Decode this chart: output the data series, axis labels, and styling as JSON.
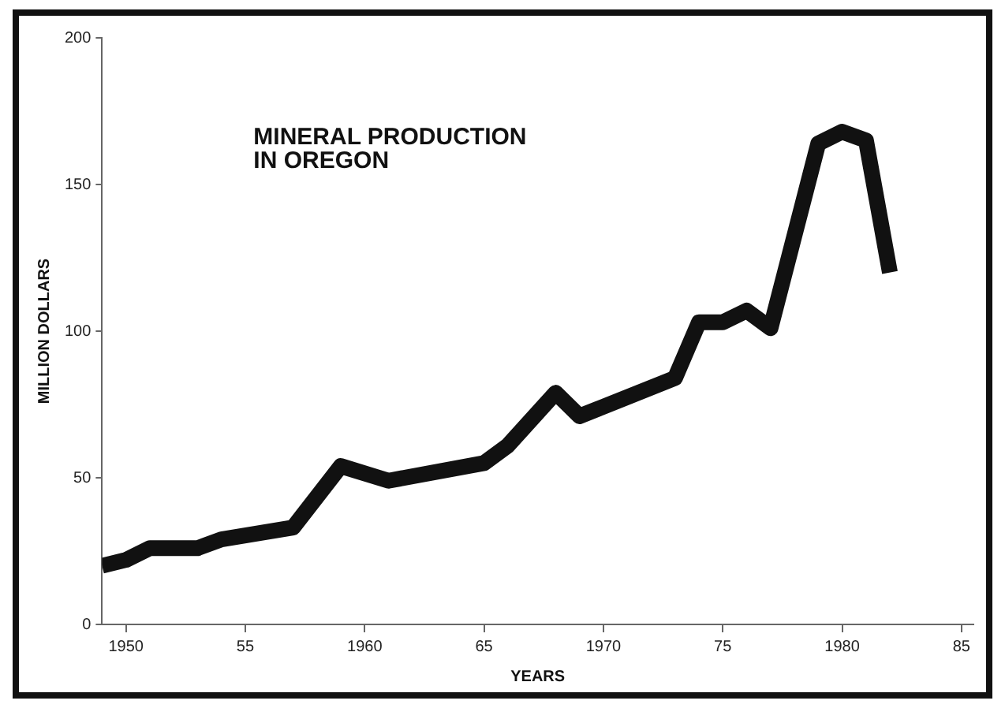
{
  "chart_data": {
    "type": "line",
    "title": "MINERAL PRODUCTION\nIN OREGON",
    "xlabel": "YEARS",
    "ylabel": "MILLION DOLLARS",
    "x": [
      1949,
      1950,
      1951,
      1953,
      1954,
      1957,
      1959,
      1961,
      1965,
      1966,
      1968,
      1969,
      1973,
      1974,
      1975,
      1976,
      1977,
      1979,
      1980,
      1981,
      1982
    ],
    "series": [
      {
        "color": "#111111",
        "values": [
          20,
          22,
          26,
          26,
          29,
          33,
          54,
          49,
          55,
          61,
          79,
          71,
          84,
          103,
          103,
          107,
          101,
          164,
          168,
          165,
          120
        ]
      }
    ],
    "xlim": [
      1949,
      1985.5
    ],
    "xticks": [
      1950,
      {
        "value": 1955,
        "label": "55"
      },
      1960,
      {
        "value": 1965,
        "label": "65"
      },
      1970,
      {
        "value": 1975,
        "label": "75"
      },
      1980,
      {
        "value": 1985,
        "label": "85"
      }
    ],
    "ylim": [
      0,
      200
    ],
    "yticks": [
      0,
      50,
      100,
      150,
      200
    ],
    "grid": false,
    "legend": false,
    "marker": "none",
    "line_style": "solid"
  }
}
